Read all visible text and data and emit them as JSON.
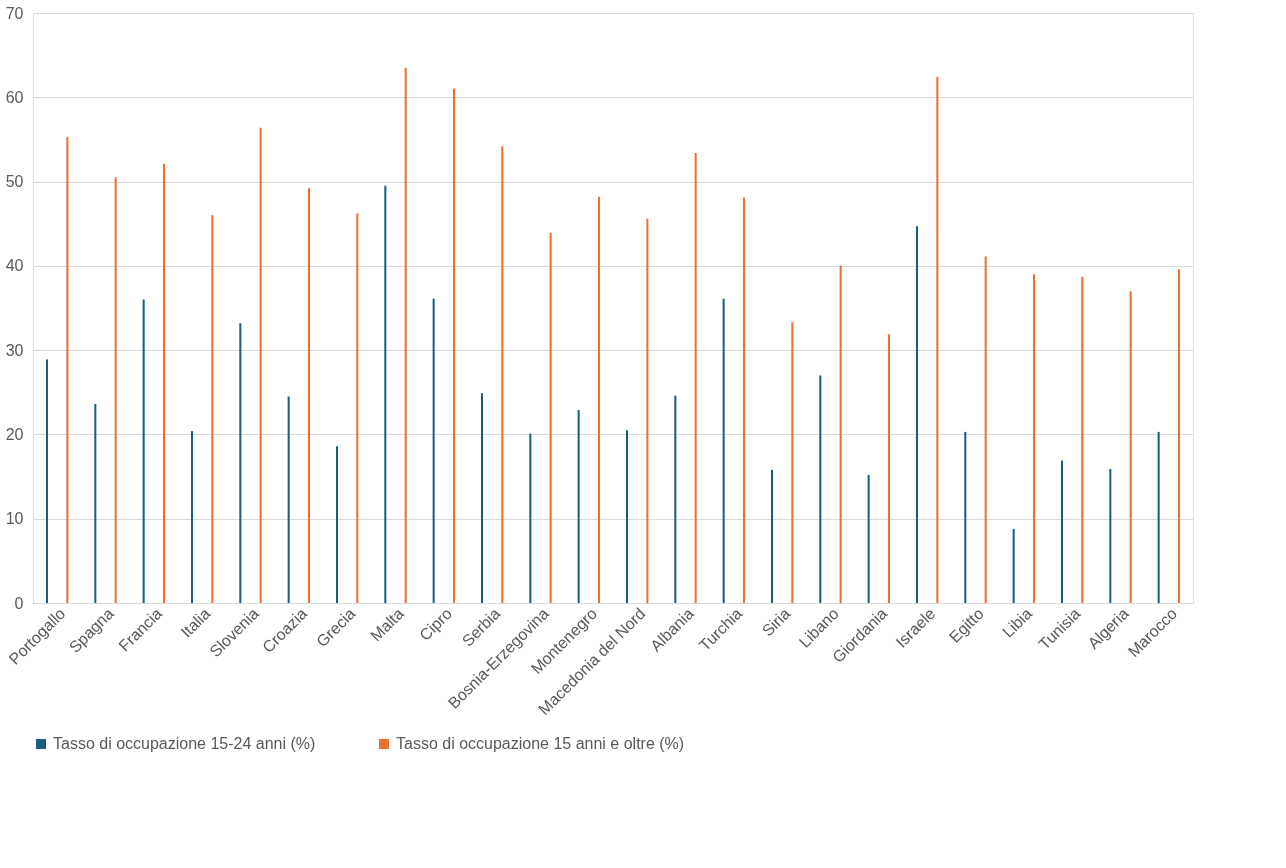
{
  "chart_data": {
    "type": "bar",
    "categories": [
      "Portogallo",
      "Spagna",
      "Francia",
      "Italia",
      "Slovenia",
      "Croazia",
      "Grecia",
      "Malta",
      "Cipro",
      "Serbia",
      "Bosnia-Erzegovina",
      "Montenegro",
      "Macedonia del Nord",
      "Albania",
      "Turchia",
      "Siria",
      "Libano",
      "Giordania",
      "Israele",
      "Egitto",
      "Libia",
      "Tunisia",
      "Algeria",
      "Marocco"
    ],
    "series": [
      {
        "name": "Tasso di occupazione 15-24 anni (%)",
        "color": "#156082",
        "values": [
          28.9,
          23.6,
          36.0,
          20.4,
          33.2,
          24.5,
          18.6,
          49.5,
          36.1,
          24.9,
          20.1,
          22.9,
          20.5,
          24.6,
          36.1,
          15.8,
          27.0,
          15.2,
          44.7,
          20.3,
          8.8,
          16.9,
          15.9,
          20.3
        ]
      },
      {
        "name": "Tasso di occupazione 15 anni e oltre (%)",
        "color": "#e97132",
        "values": [
          55.3,
          50.5,
          52.1,
          46.0,
          56.4,
          49.2,
          46.2,
          63.5,
          61.0,
          54.2,
          43.9,
          48.2,
          45.6,
          53.4,
          48.1,
          33.3,
          40.0,
          31.9,
          62.4,
          41.1,
          39.0,
          38.7,
          37.0,
          39.6
        ]
      }
    ],
    "ylim": [
      0,
      70
    ],
    "yticks": [
      0,
      10,
      20,
      30,
      40,
      50,
      60,
      70
    ],
    "grid": "y",
    "legend": "bottom"
  }
}
